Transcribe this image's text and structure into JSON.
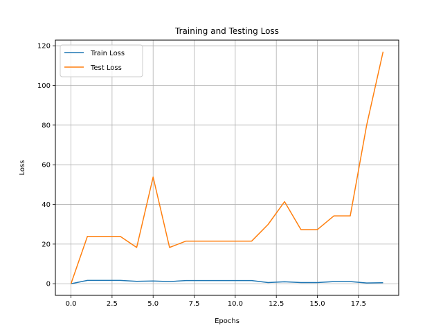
{
  "chart_data": {
    "type": "line",
    "title": "Training and Testing Loss",
    "xlabel": "Epochs",
    "ylabel": "Loss",
    "x": [
      0,
      1,
      2,
      3,
      4,
      5,
      6,
      7,
      8,
      9,
      10,
      11,
      12,
      13,
      14,
      15,
      16,
      17,
      18,
      19
    ],
    "xlim": [
      -0.95,
      19.95
    ],
    "ylim": [
      -5.85,
      122.85
    ],
    "xticks": [
      0,
      2.5,
      5,
      7.5,
      10,
      12.5,
      15,
      17.5
    ],
    "xtick_labels": [
      "0.0",
      "2.5",
      "5.0",
      "7.5",
      "10.0",
      "12.5",
      "15.0",
      "17.5"
    ],
    "yticks": [
      0,
      20,
      40,
      60,
      80,
      100,
      120
    ],
    "ytick_labels": [
      "0",
      "20",
      "40",
      "60",
      "80",
      "100",
      "120"
    ],
    "grid": true,
    "legend_position": "top-left",
    "series": [
      {
        "name": "Train Loss",
        "color": "#1f77b4",
        "values": [
          0.0,
          1.7,
          1.7,
          1.7,
          1.2,
          1.4,
          1.1,
          1.6,
          1.6,
          1.6,
          1.6,
          1.6,
          0.6,
          1.0,
          0.6,
          0.6,
          1.1,
          1.1,
          0.4,
          0.5
        ]
      },
      {
        "name": "Test Loss",
        "color": "#ff7f0e",
        "values": [
          0.0,
          23.9,
          23.9,
          23.9,
          18.3,
          53.8,
          18.3,
          21.5,
          21.5,
          21.5,
          21.5,
          21.5,
          29.9,
          41.4,
          27.3,
          27.3,
          34.2,
          34.2,
          80.0,
          117.0
        ]
      }
    ]
  }
}
